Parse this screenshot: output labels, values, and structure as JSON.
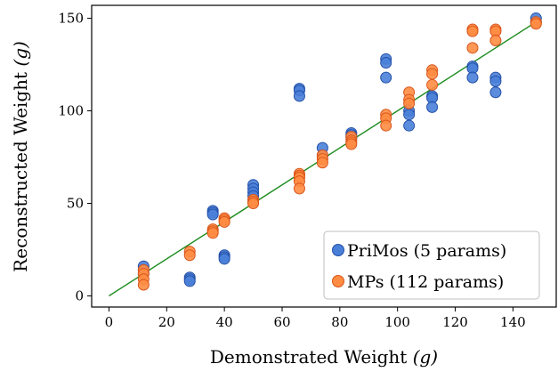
{
  "chart_data": {
    "type": "scatter",
    "title": "",
    "xlabel": "Demonstrated Weight",
    "xlabel_unit": "(g)",
    "ylabel": "Reconstructed Weight",
    "ylabel_unit": "(g)",
    "xlim": [
      -6,
      155
    ],
    "ylim": [
      -6,
      157
    ],
    "xticks": [
      0,
      20,
      40,
      60,
      80,
      100,
      120,
      140
    ],
    "yticks": [
      0,
      50,
      100,
      150
    ],
    "grid": false,
    "legend_position": "bottom-right",
    "reference_line": {
      "x": [
        0,
        148
      ],
      "y": [
        0,
        148
      ],
      "color": "#1a8a1a"
    },
    "series": [
      {
        "name": "PriMos (5 params)",
        "fill": "#4a7fd8",
        "edge": "#2350a8",
        "points": [
          [
            12,
            16
          ],
          [
            12,
            14
          ],
          [
            12,
            12
          ],
          [
            28,
            10
          ],
          [
            28,
            9
          ],
          [
            28,
            8
          ],
          [
            36,
            46
          ],
          [
            36,
            45
          ],
          [
            36,
            44
          ],
          [
            40,
            22
          ],
          [
            40,
            21
          ],
          [
            40,
            20
          ],
          [
            50,
            60
          ],
          [
            50,
            58
          ],
          [
            50,
            56
          ],
          [
            50,
            54
          ],
          [
            66,
            112
          ],
          [
            66,
            111
          ],
          [
            66,
            108
          ],
          [
            74,
            80
          ],
          [
            74,
            76
          ],
          [
            84,
            88
          ],
          [
            84,
            87
          ],
          [
            84,
            86
          ],
          [
            84,
            85
          ],
          [
            96,
            128
          ],
          [
            96,
            126
          ],
          [
            96,
            118
          ],
          [
            104,
            100
          ],
          [
            104,
            98
          ],
          [
            104,
            92
          ],
          [
            112,
            108
          ],
          [
            112,
            107
          ],
          [
            112,
            102
          ],
          [
            126,
            124
          ],
          [
            126,
            123
          ],
          [
            126,
            118
          ],
          [
            134,
            118
          ],
          [
            134,
            116
          ],
          [
            134,
            110
          ],
          [
            148,
            150
          ],
          [
            148,
            148
          ]
        ]
      },
      {
        "name": "MPs (112 params)",
        "fill": "#ff8c42",
        "edge": "#d9541a",
        "points": [
          [
            12,
            14
          ],
          [
            12,
            12
          ],
          [
            12,
            9
          ],
          [
            12,
            6
          ],
          [
            28,
            24
          ],
          [
            28,
            22
          ],
          [
            36,
            36
          ],
          [
            36,
            35
          ],
          [
            36,
            34
          ],
          [
            40,
            42
          ],
          [
            40,
            41
          ],
          [
            40,
            40
          ],
          [
            50,
            52
          ],
          [
            50,
            51
          ],
          [
            50,
            50
          ],
          [
            66,
            66
          ],
          [
            66,
            65
          ],
          [
            66,
            64
          ],
          [
            66,
            62
          ],
          [
            66,
            58
          ],
          [
            74,
            76
          ],
          [
            74,
            74
          ],
          [
            74,
            72
          ],
          [
            84,
            86
          ],
          [
            84,
            84
          ],
          [
            84,
            83
          ],
          [
            84,
            82
          ],
          [
            96,
            98
          ],
          [
            96,
            96
          ],
          [
            96,
            92
          ],
          [
            104,
            110
          ],
          [
            104,
            106
          ],
          [
            104,
            104
          ],
          [
            112,
            122
          ],
          [
            112,
            120
          ],
          [
            112,
            114
          ],
          [
            126,
            144
          ],
          [
            126,
            143
          ],
          [
            126,
            134
          ],
          [
            134,
            144
          ],
          [
            134,
            143
          ],
          [
            134,
            138
          ],
          [
            148,
            148
          ],
          [
            148,
            147
          ]
        ]
      }
    ]
  }
}
